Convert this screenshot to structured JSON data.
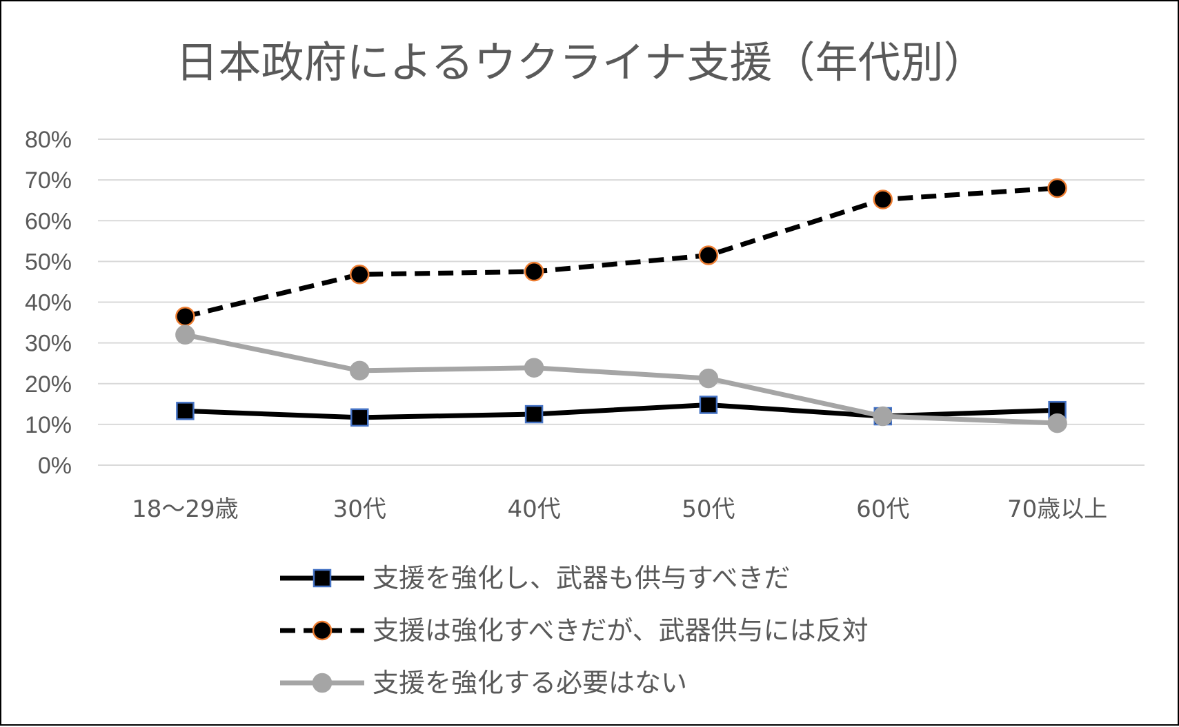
{
  "chart_data": {
    "type": "line",
    "title": "日本政府によるウクライナ支援（年代別）",
    "categories": [
      "18～29歳",
      "30代",
      "40代",
      "50代",
      "60代",
      "70歳以上"
    ],
    "y_ticks": [
      "0%",
      "10%",
      "20%",
      "30%",
      "40%",
      "50%",
      "60%",
      "70%",
      "80%"
    ],
    "ylim": [
      0,
      80
    ],
    "grid": true,
    "legend_position": "bottom",
    "series": [
      {
        "name": "支援を強化し、武器も供与すべきだ",
        "values": [
          13.3,
          11.7,
          12.5,
          14.8,
          12.0,
          13.5
        ],
        "line_color": "#000000",
        "line_style": "solid",
        "marker": "square",
        "marker_fill": "#000000",
        "marker_edge": "#4472c4"
      },
      {
        "name": "支援は強化すべきだが、武器供与には反対",
        "values": [
          36.5,
          46.8,
          47.5,
          51.5,
          65.2,
          68.0
        ],
        "line_color": "#000000",
        "line_style": "dashed",
        "marker": "circle",
        "marker_fill": "#000000",
        "marker_edge": "#ed7d31"
      },
      {
        "name": "支援を強化する必要はない",
        "values": [
          32.0,
          23.2,
          23.9,
          21.3,
          12.0,
          10.3
        ],
        "line_color": "#a5a5a5",
        "line_style": "solid",
        "marker": "circle",
        "marker_fill": "#a5a5a5",
        "marker_edge": "#a5a5a5"
      }
    ]
  }
}
